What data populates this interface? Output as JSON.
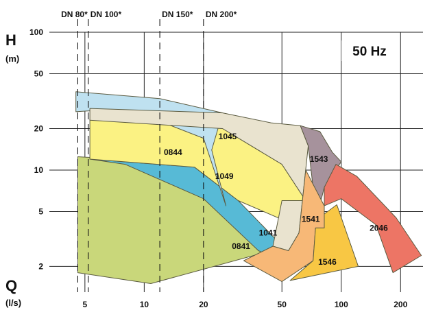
{
  "chart_data": {
    "type": "area",
    "title": "",
    "frequency_label": "50 Hz",
    "y_axis": {
      "name": "H",
      "unit": "(m)",
      "scale": "log",
      "range": [
        1.3,
        100
      ],
      "ticks": [
        "100",
        "50",
        "20",
        "10",
        "5",
        "2"
      ]
    },
    "x_axis": {
      "name": "Q",
      "unit": "(l/s)",
      "scale": "log",
      "range": [
        3.3,
        260
      ],
      "ticks": [
        "5",
        "10",
        "20",
        "50",
        "100",
        "200"
      ]
    },
    "grid": true,
    "dn_markers": [
      {
        "label": "DN 80*",
        "q": 4.6
      },
      {
        "label": "DN 100*",
        "q": 5.2
      },
      {
        "label": "DN 150*",
        "q": 12
      },
      {
        "label": "DN 200*",
        "q": 20
      }
    ],
    "ranges": [
      {
        "name": "0841",
        "color": "#c9d77a",
        "points": [
          [
            4.6,
            12.5
          ],
          [
            13,
            11.5
          ],
          [
            40,
            2.5
          ],
          [
            10.8,
            1.5
          ],
          [
            4.6,
            1.8
          ]
        ]
      },
      {
        "name": "1041",
        "color": "#57bad6",
        "points": [
          [
            5.3,
            12
          ],
          [
            18,
            10.5
          ],
          [
            30,
            6
          ],
          [
            46,
            3.2
          ],
          [
            49,
            2.2
          ],
          [
            38,
            2.6
          ],
          [
            20,
            6.2
          ],
          [
            8,
            11
          ]
        ]
      },
      {
        "name": "1049",
        "color": "#fbf283",
        "points": [
          [
            5.3,
            23.5
          ],
          [
            25,
            20
          ],
          [
            50,
            11
          ],
          [
            66,
            6
          ],
          [
            58,
            4
          ],
          [
            30,
            6
          ],
          [
            18,
            10.5
          ],
          [
            5.3,
            12
          ]
        ]
      },
      {
        "name": "0844",
        "color": "#bfe1f0",
        "points": [
          [
            4.5,
            37
          ],
          [
            12,
            33
          ],
          [
            25,
            26
          ],
          [
            22,
            14
          ],
          [
            26,
            5.5
          ],
          [
            20,
            17
          ],
          [
            10,
            25
          ],
          [
            5.5,
            27
          ],
          [
            4.5,
            26.5
          ]
        ]
      },
      {
        "name": "1045",
        "color": "#e9e3cf",
        "points": [
          [
            5.3,
            28
          ],
          [
            25,
            26
          ],
          [
            44,
            22
          ],
          [
            62,
            21
          ],
          [
            68,
            15
          ],
          [
            61,
            3.5
          ],
          [
            54,
            2.6
          ],
          [
            45,
            2.8
          ],
          [
            50,
            6
          ],
          [
            66,
            6
          ],
          [
            50,
            11
          ],
          [
            25,
            20
          ],
          [
            5.3,
            23
          ]
        ]
      },
      {
        "name": "1543",
        "color": "#a6929c",
        "points": [
          [
            62,
            21
          ],
          [
            78,
            19
          ],
          [
            90,
            13.5
          ],
          [
            100,
            11.5
          ],
          [
            82,
            7.5
          ],
          [
            75,
            4.5
          ],
          [
            68,
            15
          ]
        ]
      },
      {
        "name": "1541",
        "color": "#f7b877",
        "points": [
          [
            66,
            10
          ],
          [
            82,
            5.5
          ],
          [
            82,
            3.8
          ],
          [
            74,
            3.8
          ],
          [
            72,
            2.2
          ],
          [
            50,
            1.55
          ],
          [
            32,
            2.2
          ],
          [
            45,
            2.8
          ],
          [
            54,
            2.6
          ],
          [
            61,
            3.5
          ]
        ]
      },
      {
        "name": "1546",
        "color": "#f8c744",
        "points": [
          [
            82,
            4.8
          ],
          [
            95,
            5.6
          ],
          [
            122,
            2
          ],
          [
            55,
            1.58
          ],
          [
            72,
            2.2
          ],
          [
            74,
            3.8
          ],
          [
            82,
            3.8
          ]
        ]
      },
      {
        "name": "2046",
        "color": "#ed7565",
        "points": [
          [
            82,
            7.5
          ],
          [
            94,
            11
          ],
          [
            120,
            9
          ],
          [
            190,
            4.5
          ],
          [
            255,
            2.4
          ],
          [
            183,
            1.8
          ],
          [
            150,
            4
          ],
          [
            100,
            6.2
          ],
          [
            82,
            5.5
          ]
        ]
      }
    ],
    "range_labels": [
      {
        "name": "0844",
        "at": [
          14,
          13.5
        ]
      },
      {
        "name": "1045",
        "at": [
          26.5,
          17.5
        ]
      },
      {
        "name": "1543",
        "at": [
          77,
          12
        ]
      },
      {
        "name": "1049",
        "at": [
          25.5,
          9
        ]
      },
      {
        "name": "1541",
        "at": [
          70,
          4.4
        ]
      },
      {
        "name": "2046",
        "at": [
          155,
          3.8
        ]
      },
      {
        "name": "1041",
        "at": [
          42.5,
          3.5
        ]
      },
      {
        "name": "0841",
        "at": [
          31,
          2.8
        ]
      },
      {
        "name": "1546",
        "at": [
          85,
          2.15
        ]
      }
    ]
  }
}
